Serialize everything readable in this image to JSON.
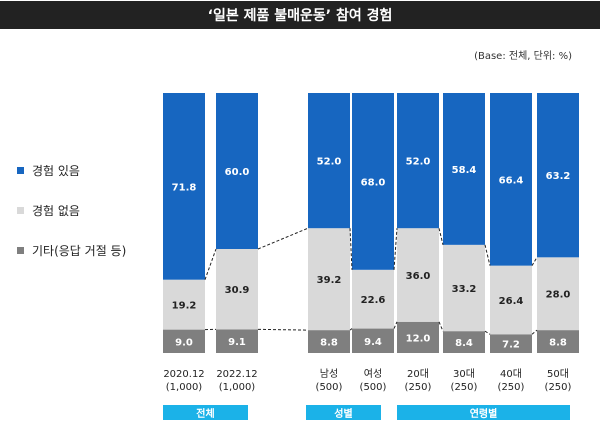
{
  "title": "‘일본 제품 불매운동’ 참여 경험",
  "base_note": "(Base: 전체, 단위: %)",
  "colors": {
    "have": "#1766C0",
    "none": "#D9D9D9",
    "other": "#7F7F7F"
  },
  "legend": [
    {
      "label": "경험 있음",
      "color": "#1766C0"
    },
    {
      "label": "경험 없음",
      "color": "#D9D9D9"
    },
    {
      "label": "기타(응답 거절 등)",
      "color": "#7F7F7F"
    }
  ],
  "chart_data": {
    "type": "bar",
    "stacked": true,
    "categories": [
      "2020.12\n(1,000)",
      "2022.12\n(1,000)",
      "남성\n(500)",
      "여성\n(500)",
      "20대\n(250)",
      "30대\n(250)",
      "40대\n(250)",
      "50대\n(250)"
    ],
    "series": [
      {
        "name": "기타(응답 거절 등)",
        "values": [
          9.0,
          9.1,
          8.8,
          9.4,
          12.0,
          8.4,
          7.2,
          8.8
        ]
      },
      {
        "name": "경험 없음",
        "values": [
          19.2,
          30.9,
          39.2,
          22.6,
          36.0,
          33.2,
          26.4,
          28.0
        ]
      },
      {
        "name": "경험 있음",
        "values": [
          71.8,
          60.0,
          52.0,
          68.0,
          52.0,
          58.4,
          66.4,
          63.2
        ]
      }
    ],
    "ylim": [
      0,
      100
    ],
    "groups": [
      {
        "label": "전체"
      },
      {
        "label": "성별"
      },
      {
        "label": "연령별"
      }
    ]
  }
}
